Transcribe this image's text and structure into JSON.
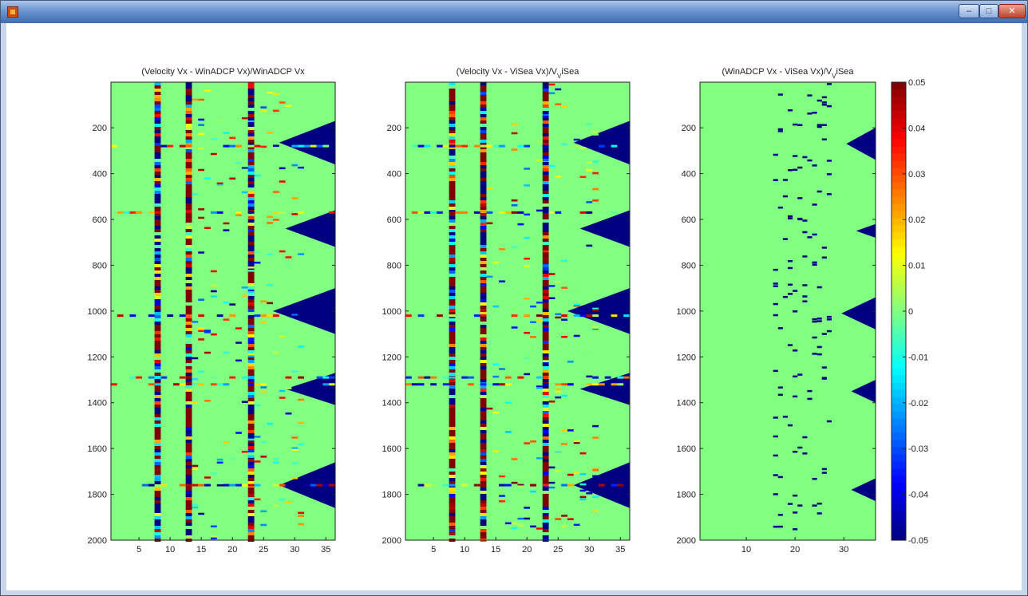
{
  "window": {
    "controls": {
      "minimize": "–",
      "maximize": "□",
      "close": "✕"
    }
  },
  "colors": {
    "high": "#7f0000",
    "zero": "#80ff80",
    "low": "#00008f",
    "frame": "#222222"
  },
  "colormap": "jet",
  "chart_data": [
    {
      "type": "heatmap",
      "title": "(Velocity Vx - WinADCP Vx)/WinADCP Vx",
      "x_ticks": [
        5,
        10,
        15,
        20,
        25,
        30,
        35
      ],
      "y_ticks": [
        200,
        400,
        600,
        800,
        1000,
        1200,
        1400,
        1600,
        1800,
        2000
      ],
      "xlim": [
        0.5,
        36.5
      ],
      "ylim": [
        1,
        2000
      ],
      "y_reversed": true,
      "clim": [
        -0.05,
        0.05
      ],
      "columns": 36,
      "noisy_columns": [
        8,
        13,
        23
      ],
      "saturated_low_regions": [
        {
          "col_start": 28,
          "col_end": 36,
          "row_start": 170,
          "row_end": 360
        },
        {
          "col_start": 29,
          "col_end": 36,
          "row_start": 560,
          "row_end": 720
        },
        {
          "col_start": 27,
          "col_end": 36,
          "row_start": 900,
          "row_end": 1100
        },
        {
          "col_start": 29,
          "col_end": 36,
          "row_start": 1270,
          "row_end": 1410
        },
        {
          "col_start": 28,
          "col_end": 36,
          "row_start": 1660,
          "row_end": 1860
        }
      ],
      "noisy_rows": [
        280,
        570,
        1020,
        1290,
        1320,
        1760
      ]
    },
    {
      "type": "heatmap",
      "title": "(Velocity Vx - ViSea Vx)/V",
      "title_sub": "V",
      "title_tail": "iSea",
      "x_ticks": [
        5,
        10,
        15,
        20,
        25,
        30,
        35
      ],
      "y_ticks": [
        200,
        400,
        600,
        800,
        1000,
        1200,
        1400,
        1600,
        1800,
        2000
      ],
      "xlim": [
        0.5,
        36.5
      ],
      "ylim": [
        1,
        2000
      ],
      "y_reversed": true,
      "clim": [
        -0.05,
        0.05
      ],
      "columns": 36,
      "noisy_columns": [
        8,
        13,
        23
      ],
      "saturated_low_regions": [
        {
          "col_start": 28,
          "col_end": 36,
          "row_start": 170,
          "row_end": 360
        },
        {
          "col_start": 29,
          "col_end": 36,
          "row_start": 560,
          "row_end": 720
        },
        {
          "col_start": 27,
          "col_end": 36,
          "row_start": 900,
          "row_end": 1100
        },
        {
          "col_start": 29,
          "col_end": 36,
          "row_start": 1270,
          "row_end": 1410
        },
        {
          "col_start": 28,
          "col_end": 36,
          "row_start": 1660,
          "row_end": 1860
        }
      ],
      "noisy_rows": [
        280,
        570,
        1020,
        1290,
        1320,
        1760
      ]
    },
    {
      "type": "heatmap",
      "title": "(WinADCP Vx - ViSea Vx)/V",
      "title_sub": "V",
      "title_tail": "iSea",
      "x_ticks": [
        10,
        20,
        30
      ],
      "y_ticks": [
        200,
        400,
        600,
        800,
        1000,
        1200,
        1400,
        1600,
        1800,
        2000
      ],
      "xlim": [
        0.5,
        36.5
      ],
      "ylim": [
        1,
        2000
      ],
      "y_reversed": true,
      "clim": [
        -0.05,
        0.05
      ],
      "columns": 36,
      "saturated_low_regions": [
        {
          "col_start": 31,
          "col_end": 36,
          "row_start": 200,
          "row_end": 340
        },
        {
          "col_start": 33,
          "col_end": 36,
          "row_start": 620,
          "row_end": 680
        },
        {
          "col_start": 30,
          "col_end": 36,
          "row_start": 940,
          "row_end": 1080
        },
        {
          "col_start": 32,
          "col_end": 36,
          "row_start": 1300,
          "row_end": 1400
        },
        {
          "col_start": 32,
          "col_end": 36,
          "row_start": 1730,
          "row_end": 1830
        }
      ]
    }
  ],
  "colorbar": {
    "clim": [
      -0.05,
      0.05
    ],
    "ticks": [
      "0.05",
      "0.04",
      "0.03",
      "0.02",
      "0.01",
      "0",
      "-0.01",
      "-0.02",
      "-0.03",
      "-0.04",
      "-0.05"
    ]
  }
}
